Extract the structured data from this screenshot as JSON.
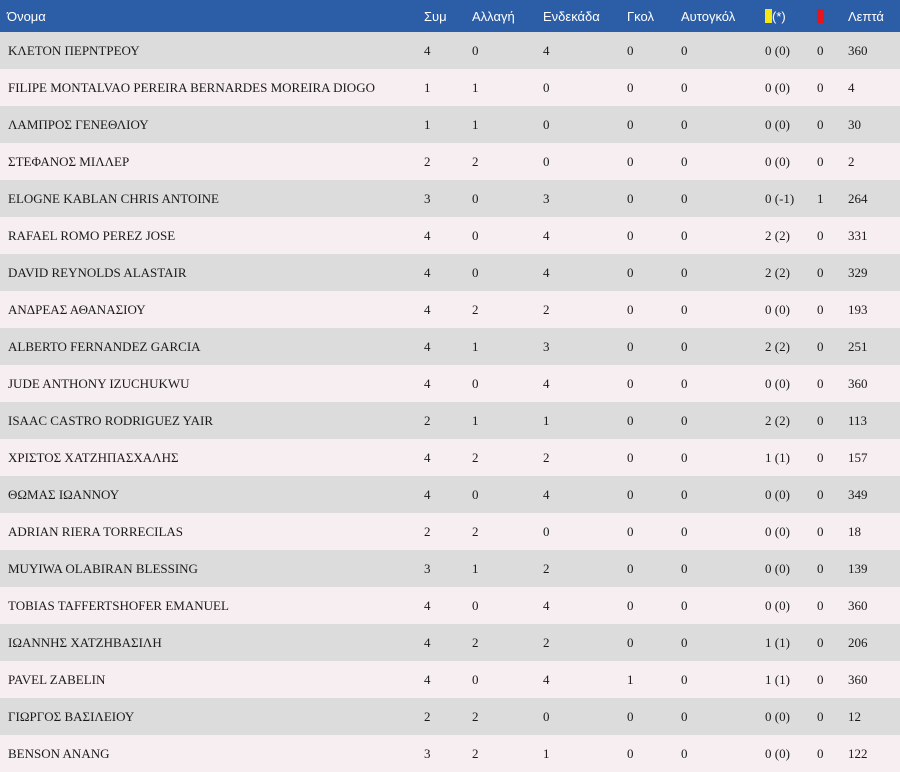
{
  "colors": {
    "header_bg": "#2c5ea8",
    "row_odd": "#dcdcdc",
    "row_even": "#f6eef0",
    "yellow_card": "#f5e616",
    "red_card": "#e8141c"
  },
  "header": {
    "name": "Όνομα",
    "apps": "Συμ",
    "sub": "Αλλαγή",
    "starts": "Ενδεκάδα",
    "goals": "Γκολ",
    "own_goals": "Αυτογκόλ",
    "yellow_note": "(*)",
    "minutes": "Λεπτά",
    "yellow_icon": "yellow-card-icon",
    "red_icon": "red-card-icon"
  },
  "rows": [
    {
      "name": "ΚΛΕΤΟΝ ΠΕΡΝΤΡΕΟΥ",
      "apps": "4",
      "sub": "0",
      "starts": "4",
      "goals": "0",
      "own_goals": "0",
      "yellow": "0 (0)",
      "red": "0",
      "minutes": "360"
    },
    {
      "name": "FILIPE MONTALVAO PEREIRA BERNARDES MOREIRA DIOGO",
      "apps": "1",
      "sub": "1",
      "starts": "0",
      "goals": "0",
      "own_goals": "0",
      "yellow": "0 (0)",
      "red": "0",
      "minutes": "4"
    },
    {
      "name": "ΛΑΜΠΡΟΣ ΓΕΝΕΘΛΙΟΥ",
      "apps": "1",
      "sub": "1",
      "starts": "0",
      "goals": "0",
      "own_goals": "0",
      "yellow": "0 (0)",
      "red": "0",
      "minutes": "30"
    },
    {
      "name": "ΣΤΕΦΑΝΟΣ ΜΙΛΛΕΡ",
      "apps": "2",
      "sub": "2",
      "starts": "0",
      "goals": "0",
      "own_goals": "0",
      "yellow": "0 (0)",
      "red": "0",
      "minutes": "2"
    },
    {
      "name": "ELOGNE KABLAN CHRIS ANTOINE",
      "apps": "3",
      "sub": "0",
      "starts": "3",
      "goals": "0",
      "own_goals": "0",
      "yellow": "0 (-1)",
      "red": "1",
      "minutes": "264"
    },
    {
      "name": "RAFAEL ROMO PEREZ JOSE",
      "apps": "4",
      "sub": "0",
      "starts": "4",
      "goals": "0",
      "own_goals": "0",
      "yellow": "2 (2)",
      "red": "0",
      "minutes": "331"
    },
    {
      "name": "DAVID REYNOLDS ALASTAIR",
      "apps": "4",
      "sub": "0",
      "starts": "4",
      "goals": "0",
      "own_goals": "0",
      "yellow": "2 (2)",
      "red": "0",
      "minutes": "329"
    },
    {
      "name": "ΑΝΔΡΕΑΣ ΑΘΑΝΑΣΙΟΥ",
      "apps": "4",
      "sub": "2",
      "starts": "2",
      "goals": "0",
      "own_goals": "0",
      "yellow": "0 (0)",
      "red": "0",
      "minutes": "193"
    },
    {
      "name": "ALBERTO FERNANDEZ GARCIA",
      "apps": "4",
      "sub": "1",
      "starts": "3",
      "goals": "0",
      "own_goals": "0",
      "yellow": "2 (2)",
      "red": "0",
      "minutes": "251"
    },
    {
      "name": "JUDE ANTHONY IZUCHUKWU",
      "apps": "4",
      "sub": "0",
      "starts": "4",
      "goals": "0",
      "own_goals": "0",
      "yellow": "0 (0)",
      "red": "0",
      "minutes": "360"
    },
    {
      "name": "ISAAC CASTRO RODRIGUEZ YAIR",
      "apps": "2",
      "sub": "1",
      "starts": "1",
      "goals": "0",
      "own_goals": "0",
      "yellow": "2 (2)",
      "red": "0",
      "minutes": "113"
    },
    {
      "name": "ΧΡΙΣΤΟΣ ΧΑΤΖΗΠΑΣΧΑΛΗΣ",
      "apps": "4",
      "sub": "2",
      "starts": "2",
      "goals": "0",
      "own_goals": "0",
      "yellow": "1 (1)",
      "red": "0",
      "minutes": "157"
    },
    {
      "name": "ΘΩΜΑΣ ΙΩΑΝΝΟΥ",
      "apps": "4",
      "sub": "0",
      "starts": "4",
      "goals": "0",
      "own_goals": "0",
      "yellow": "0 (0)",
      "red": "0",
      "minutes": "349"
    },
    {
      "name": "ADRIAN RIERA TORRECILAS",
      "apps": "2",
      "sub": "2",
      "starts": "0",
      "goals": "0",
      "own_goals": "0",
      "yellow": "0 (0)",
      "red": "0",
      "minutes": "18"
    },
    {
      "name": "MUYIWA OLABIRAN BLESSING",
      "apps": "3",
      "sub": "1",
      "starts": "2",
      "goals": "0",
      "own_goals": "0",
      "yellow": "0 (0)",
      "red": "0",
      "minutes": "139"
    },
    {
      "name": "TOBIAS TAFFERTSHOFER EMANUEL",
      "apps": "4",
      "sub": "0",
      "starts": "4",
      "goals": "0",
      "own_goals": "0",
      "yellow": "0 (0)",
      "red": "0",
      "minutes": "360"
    },
    {
      "name": "ΙΩΑΝΝΗΣ ΧΑΤΖΗΒΑΣΙΛΗ",
      "apps": "4",
      "sub": "2",
      "starts": "2",
      "goals": "0",
      "own_goals": "0",
      "yellow": "1 (1)",
      "red": "0",
      "minutes": "206"
    },
    {
      "name": "PAVEL ZABELIN",
      "apps": "4",
      "sub": "0",
      "starts": "4",
      "goals": "1",
      "own_goals": "0",
      "yellow": "1 (1)",
      "red": "0",
      "minutes": "360"
    },
    {
      "name": "ΓΙΩΡΓΟΣ ΒΑΣΙΛΕΙΟΥ",
      "apps": "2",
      "sub": "2",
      "starts": "0",
      "goals": "0",
      "own_goals": "0",
      "yellow": "0 (0)",
      "red": "0",
      "minutes": "12"
    },
    {
      "name": "BENSON ANANG",
      "apps": "3",
      "sub": "2",
      "starts": "1",
      "goals": "0",
      "own_goals": "0",
      "yellow": "0 (0)",
      "red": "0",
      "minutes": "122"
    }
  ]
}
